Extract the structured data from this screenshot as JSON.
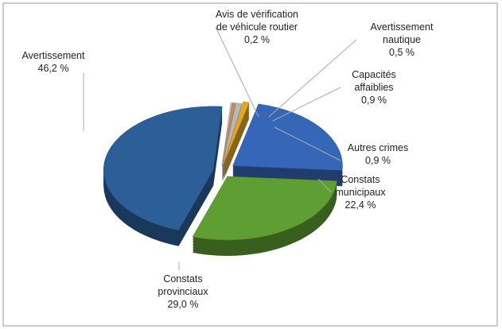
{
  "chart_data": {
    "type": "pie",
    "categories": [
      "Avis de vérification de véhicule routier",
      "Avertissement nautique",
      "Capacités affaiblies",
      "Autres crimes",
      "Constats municipaux",
      "Constats provinciaux",
      "Avertissement"
    ],
    "values": [
      0.2,
      0.5,
      0.9,
      0.9,
      22.4,
      29.0,
      46.2
    ],
    "value_labels": [
      "0,2 %",
      "0,5 %",
      "0,9 %",
      "0,9 %",
      "22,4 %",
      "29,0 %",
      "46,2 %"
    ],
    "colors": [
      "#d8c8b8",
      "#c08a6a",
      "#b8b8b8",
      "#e0a628",
      "#3566b8",
      "#5f9e32",
      "#2c5e98"
    ]
  }
}
